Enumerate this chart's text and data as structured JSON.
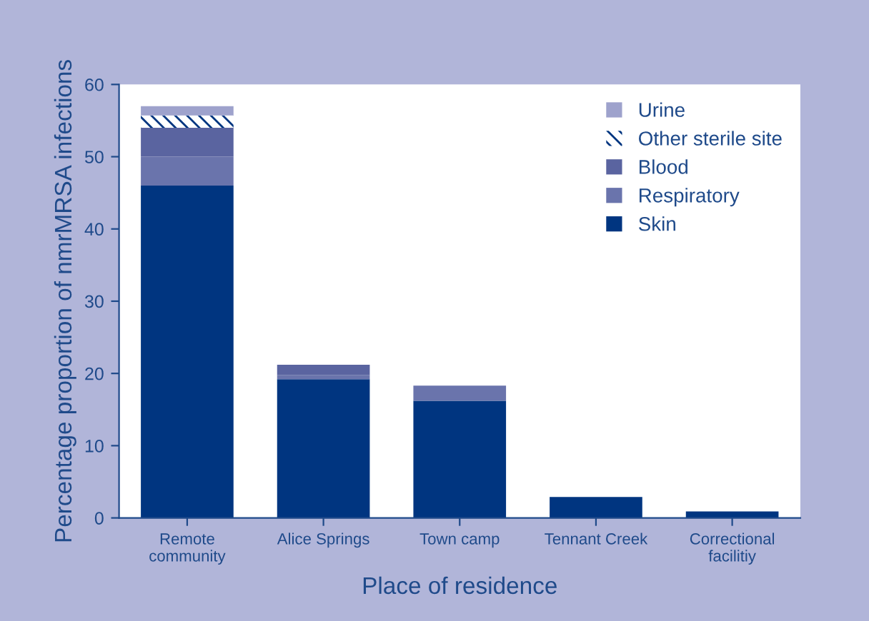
{
  "chart_data": {
    "type": "bar",
    "stacked": true,
    "categories": [
      "Remote\ncommunity",
      "Alice Springs",
      "Town camp",
      "Tennant Creek",
      "Correctional\nfacilitiy"
    ],
    "series": [
      {
        "name": "Skin",
        "color": "#003580",
        "values": [
          46,
          19.2,
          16.2,
          2.9,
          0.9
        ]
      },
      {
        "name": "Respiratory",
        "color": "#6a74ac",
        "values": [
          4,
          0.6,
          2.1,
          0,
          0
        ]
      },
      {
        "name": "Blood",
        "color": "#5a64a0",
        "values": [
          4,
          1.4,
          0,
          0,
          0
        ]
      },
      {
        "name": "Other sterile site",
        "color": "#ffffff",
        "values": [
          1.7,
          0,
          0,
          0,
          0
        ]
      },
      {
        "name": "Urine",
        "color": "#9ea2cc",
        "values": [
          1.3,
          0,
          0,
          0,
          0
        ]
      }
    ],
    "xlabel": "Place of residence",
    "ylabel": "Percentage proportion of nmrMRSA infections",
    "ylim": [
      0,
      60
    ],
    "yticks": [
      0,
      10,
      20,
      30,
      40,
      50,
      60
    ],
    "legend": "top right",
    "grid": false
  }
}
